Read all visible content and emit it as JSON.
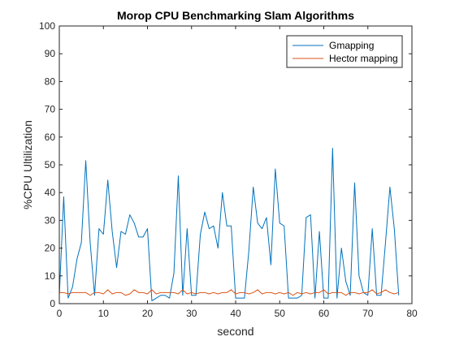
{
  "chart_data": {
    "type": "line",
    "title": "Morop CPU Benchmarking Slam Algorithms",
    "xlabel": "second",
    "ylabel": "%CPU Ultilization",
    "xlim": [
      0,
      80
    ],
    "ylim": [
      0,
      100
    ],
    "xticks": [
      "0",
      "10",
      "20",
      "30",
      "40",
      "50",
      "60",
      "70",
      "80"
    ],
    "yticks": [
      "0",
      "10",
      "20",
      "30",
      "40",
      "50",
      "60",
      "70",
      "80",
      "90",
      "100"
    ],
    "grid": false,
    "legend": {
      "position": "top-right"
    },
    "series": [
      {
        "name": "Gmapping",
        "color": "#0072BD",
        "x": [
          0,
          1,
          2,
          3,
          4,
          5,
          6,
          7,
          8,
          9,
          10,
          11,
          12,
          13,
          14,
          15,
          16,
          17,
          18,
          19,
          20,
          21,
          22,
          23,
          24,
          25,
          26,
          27,
          28,
          29,
          30,
          31,
          32,
          33,
          34,
          35,
          36,
          37,
          38,
          39,
          40,
          41,
          42,
          43,
          44,
          45,
          46,
          47,
          48,
          49,
          50,
          51,
          52,
          53,
          54,
          55,
          56,
          57,
          58,
          59,
          60,
          61,
          62,
          63,
          64,
          65,
          66,
          67,
          68,
          69,
          70,
          71,
          72,
          73,
          74,
          75,
          76,
          77
        ],
        "y": [
          3,
          38.5,
          2,
          6,
          16,
          22,
          51.5,
          22,
          3,
          27,
          25,
          44.5,
          26,
          13,
          26,
          25,
          32,
          29,
          24,
          24,
          27,
          1,
          2,
          3,
          3,
          2,
          11,
          46,
          3,
          27,
          3,
          3,
          25,
          33,
          27,
          28,
          20,
          40,
          28,
          28,
          2,
          2,
          2,
          19,
          42,
          29,
          27,
          31,
          14,
          48.5,
          29,
          28,
          2,
          2,
          2,
          3,
          31,
          32,
          2,
          26,
          2,
          2,
          56,
          2,
          20,
          8,
          3,
          43.5,
          10,
          4,
          3,
          27,
          3,
          3,
          22,
          42,
          27,
          3
        ]
      },
      {
        "name": "Hector mapping",
        "color": "#D95319",
        "x": [
          0,
          1,
          2,
          3,
          4,
          5,
          6,
          7,
          8,
          9,
          10,
          11,
          12,
          13,
          14,
          15,
          16,
          17,
          18,
          19,
          20,
          21,
          22,
          23,
          24,
          25,
          26,
          27,
          28,
          29,
          30,
          31,
          32,
          33,
          34,
          35,
          36,
          37,
          38,
          39,
          40,
          41,
          42,
          43,
          44,
          45,
          46,
          47,
          48,
          49,
          50,
          51,
          52,
          53,
          54,
          55,
          56,
          57,
          58,
          59,
          60,
          61,
          62,
          63,
          64,
          65,
          66,
          67,
          68,
          69,
          70,
          71,
          72,
          73,
          74,
          75,
          76,
          77
        ],
        "y": [
          4,
          4,
          3.5,
          4,
          4,
          4,
          4,
          3,
          4,
          4,
          3.5,
          5,
          3.5,
          4,
          4,
          3,
          3.5,
          5,
          4,
          4,
          3.5,
          5,
          3.5,
          4,
          4,
          4,
          4,
          3.5,
          5,
          3.5,
          4,
          3.5,
          4,
          4,
          3.5,
          4,
          3.5,
          4,
          4,
          5,
          3.5,
          4,
          4,
          3.5,
          4,
          5,
          3.5,
          4,
          4,
          3.5,
          4,
          3.5,
          4,
          3,
          4,
          3.5,
          4,
          3.5,
          4,
          4,
          5,
          3.5,
          4,
          4,
          4,
          3,
          4,
          4,
          3.5,
          4,
          4,
          5,
          3.5,
          4,
          5,
          4,
          3.5,
          4
        ]
      }
    ]
  }
}
